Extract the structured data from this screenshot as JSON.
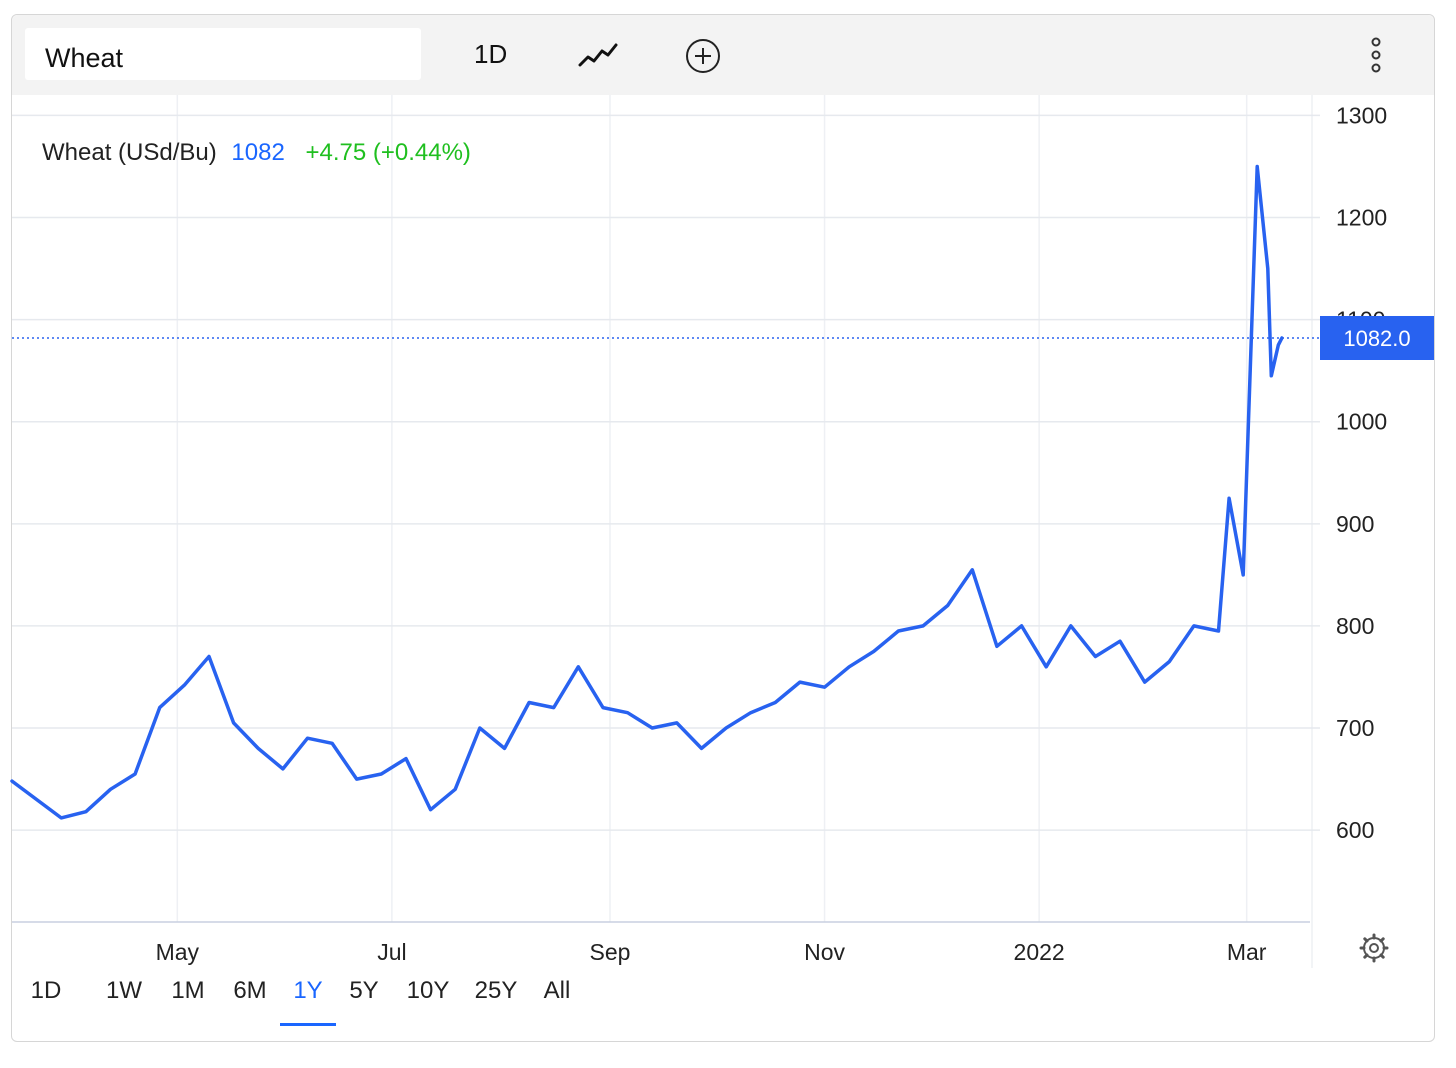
{
  "toolbar": {
    "symbol_value": "Wheat",
    "interval_label": "1D",
    "linechart_icon": "line-chart-icon",
    "compare_icon": "plus-circle-icon",
    "more_icon": "more-vertical-icon"
  },
  "legend": {
    "name": "Wheat (USd/Bu)",
    "value": "1082",
    "change": "+4.75 (+0.44%)",
    "value_color": "#1a66ff",
    "change_color": "#1fbf1f"
  },
  "price_tag": "1082.0",
  "settings_icon": "gear-icon",
  "ranges": [
    {
      "label": "1D",
      "active": false
    },
    {
      "label": "1W",
      "active": false
    },
    {
      "label": "1M",
      "active": false
    },
    {
      "label": "6M",
      "active": false
    },
    {
      "label": "1Y",
      "active": true
    },
    {
      "label": "5Y",
      "active": false
    },
    {
      "label": "10Y",
      "active": false
    },
    {
      "label": "25Y",
      "active": false
    },
    {
      "label": "All",
      "active": false
    }
  ],
  "chart_data": {
    "type": "line",
    "series": [
      {
        "color": "#2862f0",
        "x": [
          "2021-03-15",
          "2021-03-22",
          "2021-03-29",
          "2021-04-05",
          "2021-04-12",
          "2021-04-19",
          "2021-04-26",
          "2021-05-03",
          "2021-05-10",
          "2021-05-17",
          "2021-05-24",
          "2021-05-31",
          "2021-06-07",
          "2021-06-14",
          "2021-06-21",
          "2021-06-28",
          "2021-07-05",
          "2021-07-12",
          "2021-07-19",
          "2021-07-26",
          "2021-08-02",
          "2021-08-09",
          "2021-08-16",
          "2021-08-23",
          "2021-08-30",
          "2021-09-06",
          "2021-09-13",
          "2021-09-20",
          "2021-09-27",
          "2021-10-04",
          "2021-10-11",
          "2021-10-18",
          "2021-10-25",
          "2021-11-01",
          "2021-11-08",
          "2021-11-15",
          "2021-11-22",
          "2021-11-29",
          "2021-12-06",
          "2021-12-13",
          "2021-12-20",
          "2021-12-27",
          "2022-01-03",
          "2022-01-10",
          "2022-01-17",
          "2022-01-24",
          "2022-01-31",
          "2022-02-07",
          "2022-02-14",
          "2022-02-21",
          "2022-02-24",
          "2022-02-28",
          "2022-03-02",
          "2022-03-04",
          "2022-03-07",
          "2022-03-08",
          "2022-03-10",
          "2022-03-11"
        ],
        "values": [
          648,
          630,
          612,
          618,
          640,
          655,
          720,
          742,
          770,
          705,
          680,
          660,
          690,
          685,
          650,
          655,
          670,
          620,
          640,
          700,
          680,
          725,
          720,
          760,
          720,
          715,
          700,
          705,
          680,
          700,
          715,
          725,
          745,
          740,
          760,
          775,
          795,
          800,
          820,
          855,
          780,
          800,
          760,
          800,
          770,
          785,
          745,
          765,
          800,
          795,
          925,
          850,
          1050,
          1250,
          1150,
          1045,
          1075,
          1082
        ]
      }
    ],
    "xticks": [
      "May",
      "Jul",
      "Sep",
      "Nov",
      "2022",
      "Mar"
    ],
    "yticks": [
      600,
      700,
      800,
      900,
      1000,
      1100,
      1200,
      1300
    ],
    "ylim": [
      510,
      1320
    ],
    "grid": true,
    "current_value": 1082
  }
}
